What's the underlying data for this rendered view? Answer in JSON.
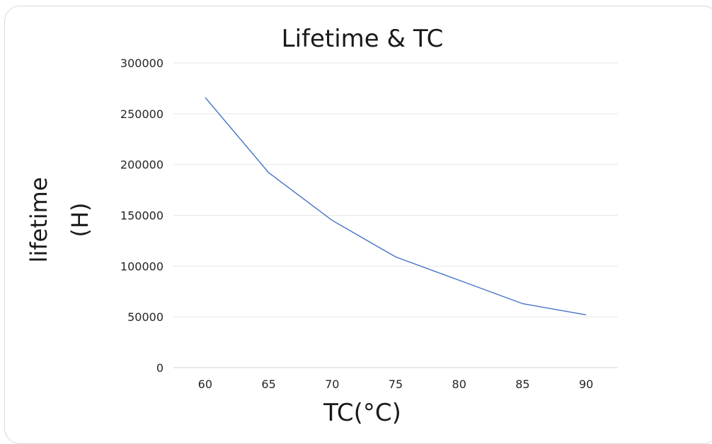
{
  "chart_data": {
    "type": "line",
    "title": "Lifetime & TC",
    "xlabel": "TC(°C)",
    "ylabel": [
      "lifetime",
      "(H)"
    ],
    "x": [
      60,
      65,
      70,
      75,
      80,
      85,
      90
    ],
    "xticks": [
      "60",
      "65",
      "70",
      "75",
      "80",
      "85",
      "90"
    ],
    "yticks": [
      "0",
      "50000",
      "100000",
      "150000",
      "200000",
      "250000",
      "300000"
    ],
    "ylim": [
      0,
      300000
    ],
    "grid": true,
    "series": [
      {
        "values": [
          266000,
          192000,
          145000,
          109000,
          86000,
          63000,
          52000
        ],
        "color": "#4472c4"
      }
    ]
  }
}
